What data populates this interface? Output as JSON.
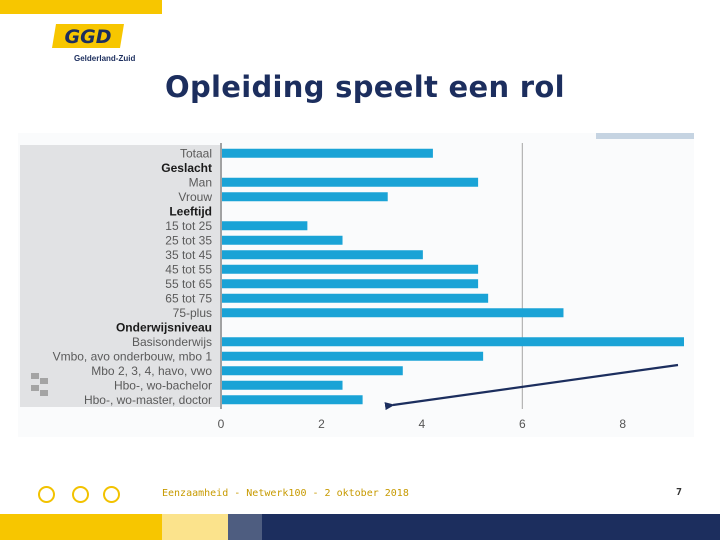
{
  "header": {
    "logo_text": "GGD",
    "logo_subtitle": "Gelderland-Zuid"
  },
  "slide": {
    "title": "Opleiding speelt een rol"
  },
  "footer": {
    "caption": "Eenzaamheid - Netwerk100 - 2 oktober 2018",
    "page_number": "7"
  },
  "colors": {
    "bar": "#1aa3d6",
    "navy": "#1c2e5e",
    "yellow": "#f7c600",
    "arrow": "#1c2e5e"
  },
  "chart_data": {
    "type": "bar",
    "orientation": "horizontal",
    "title": "",
    "xlabel": "",
    "ylabel": "",
    "xlim": [
      0,
      9.2
    ],
    "ticks": [
      0,
      2,
      4,
      6,
      8
    ],
    "grid": false,
    "reference_line": 6,
    "categories": [
      "Totaal",
      "Geslacht",
      "Man",
      "Vrouw",
      "Leeftijd",
      "15 tot 25",
      "25 tot 35",
      "35 tot 45",
      "45 tot 55",
      "55 tot 65",
      "65 tot 75",
      "75-plus",
      "Onderwijsniveau",
      "Basisonderwijs",
      "Vmbo, avo onderbouw, mbo 1",
      "Mbo 2, 3, 4, havo, vwo",
      "Hbo-, wo-bachelor",
      "Hbo-, wo-master, doctor"
    ],
    "headers": [
      "Geslacht",
      "Leeftijd",
      "Onderwijsniveau"
    ],
    "values": [
      4.2,
      null,
      5.1,
      3.3,
      null,
      1.7,
      2.4,
      4.0,
      5.1,
      5.1,
      5.3,
      6.8,
      null,
      9.2,
      5.2,
      3.6,
      2.4,
      2.8
    ]
  }
}
